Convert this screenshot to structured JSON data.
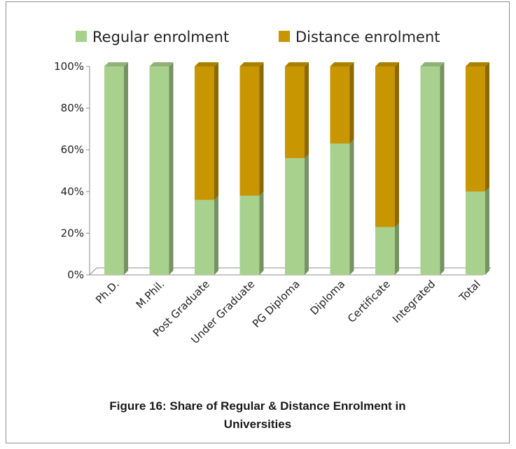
{
  "chart_data": {
    "type": "bar",
    "stacked": true,
    "percent": true,
    "title": "Figure 16: Share of Regular & Distance Enrolment in Universities",
    "title_lines": [
      "Figure 16: Share of Regular & Distance Enrolment in",
      "Universities"
    ],
    "categories": [
      "Ph.D.",
      "M.Phil.",
      "Post Graduate",
      "Under Graduate",
      "PG Diploma",
      "Diploma",
      "Certificate",
      "Integrated",
      "Total"
    ],
    "series": [
      {
        "name": "Regular enrolment",
        "color": "#a9d18e",
        "values": [
          100,
          100,
          36,
          38,
          56,
          63,
          23,
          100,
          40
        ]
      },
      {
        "name": "Distance enrolment",
        "color": "#c89600",
        "values": [
          0,
          0,
          64,
          62,
          44,
          37,
          77,
          0,
          60
        ]
      }
    ],
    "ylim": [
      0,
      100
    ],
    "yticks": [
      "0%",
      "20%",
      "40%",
      "60%",
      "80%",
      "100%"
    ],
    "legend_position": "top",
    "grid": false,
    "xlabel": "",
    "ylabel": ""
  }
}
